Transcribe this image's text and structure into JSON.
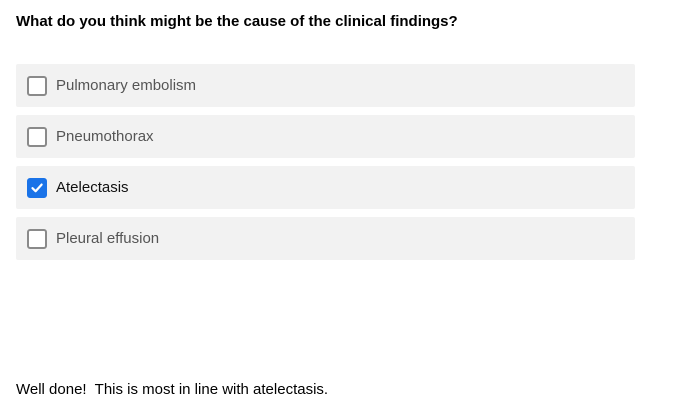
{
  "question": "What do you think might be the cause of the clinical findings?",
  "options": [
    {
      "label": "Pulmonary embolism",
      "checked": false
    },
    {
      "label": "Pneumothorax",
      "checked": false
    },
    {
      "label": "Atelectasis",
      "checked": true
    },
    {
      "label": "Pleural effusion",
      "checked": false
    }
  ],
  "feedback": "Well done!  This is most in line with atelectasis.",
  "colors": {
    "option_background": "#f2f2f2",
    "checkbox_checked": "#1a73e8",
    "checkbox_border": "#8a8a8a"
  }
}
